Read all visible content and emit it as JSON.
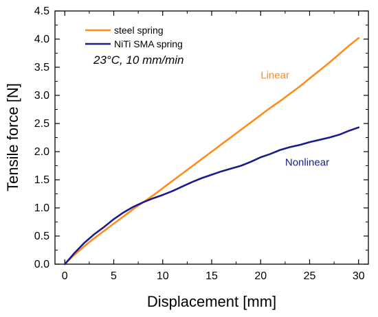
{
  "chart_data": {
    "type": "line",
    "xlabel": "Displacement [mm]",
    "ylabel": "Tensile force [N]",
    "xlim": [
      -1,
      31
    ],
    "ylim": [
      0,
      4.5
    ],
    "x_ticks": [
      0,
      5,
      10,
      15,
      20,
      25,
      30
    ],
    "y_ticks": [
      0.0,
      0.5,
      1.0,
      1.5,
      2.0,
      2.5,
      3.0,
      3.5,
      4.0,
      4.5
    ],
    "x_tick_labels": [
      "0",
      "5",
      "10",
      "15",
      "20",
      "25",
      "30"
    ],
    "y_tick_labels": [
      "0.0",
      "0.5",
      "1.0",
      "1.5",
      "2.0",
      "2.5",
      "3.0",
      "3.5",
      "4.0",
      "4.5"
    ],
    "grid": false,
    "legend_position": "top-left",
    "condition_text": "23°C, 10 mm/min",
    "series": [
      {
        "name": "steel spring",
        "color": "#ff8c1a",
        "x": [
          0,
          1,
          2,
          3,
          4,
          5,
          6,
          7,
          8,
          9,
          10,
          11,
          12,
          13,
          14,
          15,
          16,
          17,
          18,
          19,
          20,
          21,
          22,
          23,
          24,
          25,
          26,
          27,
          28,
          29,
          30
        ],
        "y": [
          0.0,
          0.17,
          0.32,
          0.46,
          0.59,
          0.72,
          0.85,
          0.98,
          1.1,
          1.22,
          1.35,
          1.48,
          1.61,
          1.74,
          1.87,
          2.0,
          2.13,
          2.26,
          2.39,
          2.52,
          2.65,
          2.78,
          2.9,
          3.03,
          3.16,
          3.3,
          3.44,
          3.58,
          3.73,
          3.88,
          4.02
        ]
      },
      {
        "name": "NiTi SMA spring",
        "color": "#1a1a8c",
        "x": [
          0,
          1,
          2,
          3,
          4,
          5,
          6,
          7,
          8,
          9,
          10,
          11,
          12,
          13,
          14,
          15,
          16,
          17,
          18,
          19,
          20,
          21,
          22,
          23,
          24,
          25,
          26,
          27,
          28,
          29,
          30
        ],
        "y": [
          0.0,
          0.2,
          0.38,
          0.53,
          0.66,
          0.8,
          0.92,
          1.02,
          1.1,
          1.17,
          1.23,
          1.3,
          1.38,
          1.46,
          1.53,
          1.59,
          1.65,
          1.7,
          1.75,
          1.82,
          1.9,
          1.96,
          2.03,
          2.08,
          2.12,
          2.17,
          2.21,
          2.25,
          2.3,
          2.37,
          2.43
        ]
      }
    ],
    "annotations": [
      {
        "text": "Linear",
        "x": 20,
        "y": 3.3,
        "color": "#ff8c1a"
      },
      {
        "text": "Nonlinear",
        "x": 22.5,
        "y": 1.75,
        "color": "#1a1a8c"
      }
    ]
  }
}
